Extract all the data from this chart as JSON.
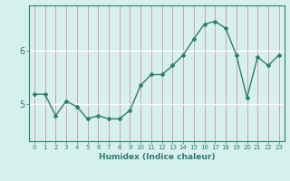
{
  "x": [
    0,
    1,
    2,
    3,
    4,
    5,
    6,
    7,
    8,
    9,
    10,
    11,
    12,
    13,
    14,
    15,
    16,
    17,
    18,
    19,
    20,
    21,
    22,
    23
  ],
  "y": [
    5.18,
    5.18,
    4.78,
    5.05,
    4.95,
    4.72,
    4.78,
    4.72,
    4.72,
    4.88,
    5.35,
    5.55,
    5.55,
    5.72,
    5.92,
    6.22,
    6.5,
    6.55,
    6.42,
    5.92,
    5.12,
    5.88,
    5.72,
    5.92
  ],
  "xlabel": "Humidex (Indice chaleur)",
  "line_color": "#2e7d6e",
  "marker": "D",
  "marker_size": 2.0,
  "bg_color": "#d6f0ee",
  "grid_h_color": "#ffffff",
  "grid_v_color": "#d08080",
  "axis_color": "#2e7d6e",
  "tick_label_color": "#2e7d6e",
  "xlabel_color": "#2e7d6e",
  "ytick_positions": [
    5.0,
    6.0
  ],
  "ytick_labels": [
    "5",
    "6"
  ],
  "ylim": [
    4.3,
    6.85
  ],
  "xlim": [
    -0.5,
    23.5
  ]
}
